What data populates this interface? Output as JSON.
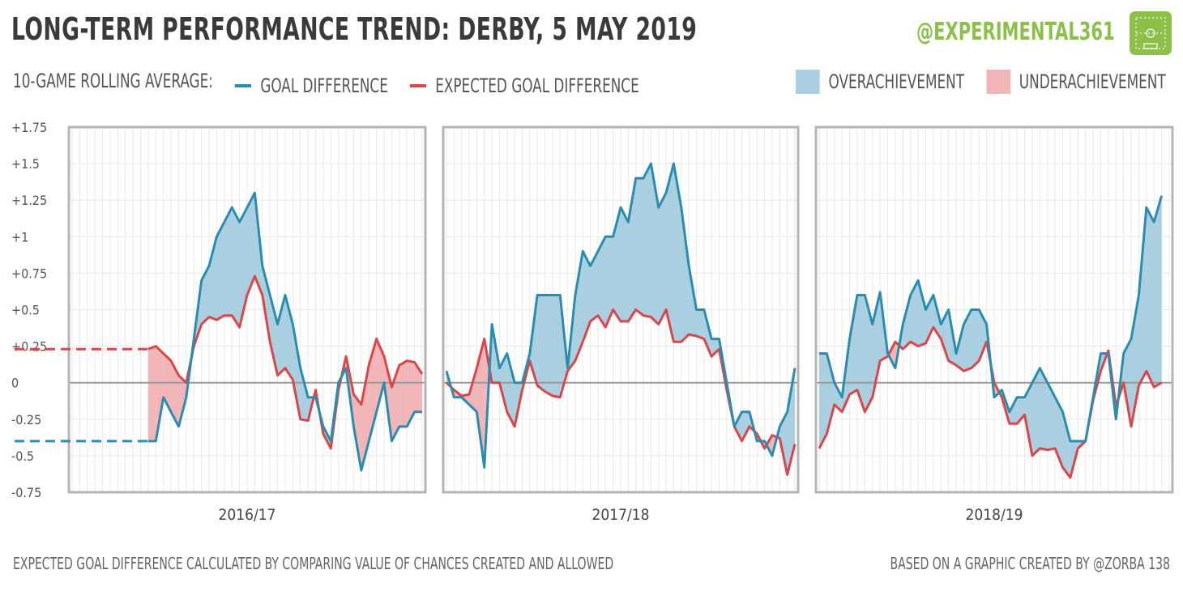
{
  "header": {
    "title": "LONG-TERM PERFORMANCE TREND: DERBY, 5 MAY 2019",
    "handle": "@EXPERIMENTAL361"
  },
  "legend": {
    "prefix": "10-GAME ROLLING  AVERAGE:",
    "gd_label": "GOAL DIFFERENCE",
    "xgd_label": "EXPECTED GOAL DIFFERENCE",
    "over_label": "OVERACHIEVEMENT",
    "under_label": "UNDERACHIEVEMENT"
  },
  "footer": {
    "left": "EXPECTED GOAL DIFFERENCE CALCULATED BY COMPARING VALUE OF CHANCES CREATED AND ALLOWED",
    "right": "BASED ON A GRAPHIC CREATED BY @ZORBA 138"
  },
  "colors": {
    "gd": "#2a8db0",
    "xgd": "#d9474b",
    "over": "#a9cfe0",
    "under": "#f2b6b8",
    "frame": "#b5b5b5",
    "grid": "#e9e9e9",
    "zero": "#9a9a9a",
    "brand": "#8cc04b"
  },
  "chart_data": {
    "type": "line",
    "ylim": [
      -0.75,
      1.75
    ],
    "yticks": [
      {
        "v": 1.75,
        "label": "+1.75"
      },
      {
        "v": 1.5,
        "label": "+1.5"
      },
      {
        "v": 1.25,
        "label": "+1.25"
      },
      {
        "v": 1,
        "label": "+1"
      },
      {
        "v": 0.75,
        "label": "+0.75"
      },
      {
        "v": 0.5,
        "label": "+0.5"
      },
      {
        "v": 0.25,
        "label": "+0.25"
      },
      {
        "v": 0,
        "label": "0"
      },
      {
        "v": -0.25,
        "label": "-0.25"
      },
      {
        "v": -0.5,
        "label": "-0.5"
      },
      {
        "v": -0.75,
        "label": "-0.75"
      }
    ],
    "games_per_season": 46,
    "grid": true,
    "panels": [
      {
        "label": "2016/17",
        "start_game": 10,
        "lead_in": {
          "gd": -0.4,
          "xgd": 0.23
        },
        "gd": [
          -0.4,
          -0.4,
          -0.1,
          -0.2,
          -0.3,
          -0.1,
          0.3,
          0.7,
          0.8,
          1.0,
          1.1,
          1.2,
          1.1,
          1.2,
          1.3,
          0.8,
          0.6,
          0.4,
          0.6,
          0.4,
          0.1,
          -0.1,
          -0.1,
          -0.3,
          -0.4,
          0.0,
          0.1,
          -0.3,
          -0.6,
          -0.4,
          -0.2,
          0.0,
          -0.4,
          -0.3,
          -0.3,
          -0.2,
          -0.2
        ],
        "xgd": [
          0.23,
          0.25,
          0.2,
          0.15,
          0.05,
          0.0,
          0.25,
          0.4,
          0.45,
          0.43,
          0.46,
          0.46,
          0.38,
          0.6,
          0.73,
          0.6,
          0.28,
          0.05,
          0.1,
          0.02,
          -0.25,
          -0.26,
          -0.05,
          -0.35,
          -0.45,
          -0.05,
          0.18,
          -0.08,
          -0.15,
          0.12,
          0.3,
          0.18,
          -0.03,
          0.12,
          0.15,
          0.14,
          0.06
        ]
      },
      {
        "label": "2017/18",
        "start_game": 0,
        "gd": [
          0.08,
          -0.1,
          -0.1,
          -0.15,
          -0.2,
          -0.58,
          0.4,
          0.1,
          0.2,
          0.0,
          0.0,
          0.2,
          0.6,
          0.6,
          0.6,
          0.6,
          0.1,
          0.6,
          0.9,
          0.8,
          0.9,
          1.0,
          1.0,
          1.2,
          1.1,
          1.4,
          1.4,
          1.5,
          1.2,
          1.3,
          1.5,
          1.2,
          0.8,
          0.5,
          0.5,
          0.3,
          0.3,
          0.0,
          -0.3,
          -0.2,
          -0.2,
          -0.4,
          -0.4,
          -0.5,
          -0.3,
          -0.2,
          0.1
        ],
        "xgd": [
          0.0,
          -0.05,
          -0.09,
          -0.08,
          0.1,
          0.3,
          0.0,
          0.0,
          -0.2,
          -0.3,
          -0.05,
          0.15,
          -0.02,
          -0.06,
          -0.09,
          -0.1,
          0.08,
          0.15,
          0.28,
          0.42,
          0.46,
          0.38,
          0.5,
          0.42,
          0.42,
          0.5,
          0.46,
          0.45,
          0.4,
          0.5,
          0.28,
          0.28,
          0.33,
          0.32,
          0.3,
          0.18,
          0.23,
          -0.05,
          -0.3,
          -0.4,
          -0.3,
          -0.35,
          -0.45,
          -0.36,
          -0.38,
          -0.63,
          -0.42
        ]
      },
      {
        "label": "2018/19",
        "start_game": 0,
        "gd": [
          0.2,
          0.2,
          0.0,
          -0.1,
          0.3,
          0.6,
          0.6,
          0.4,
          0.62,
          0.2,
          0.1,
          0.4,
          0.6,
          0.7,
          0.5,
          0.6,
          0.4,
          0.5,
          0.2,
          0.4,
          0.5,
          0.5,
          0.4,
          -0.1,
          -0.05,
          -0.2,
          -0.1,
          -0.1,
          0.0,
          0.1,
          0.0,
          -0.1,
          -0.2,
          -0.4,
          -0.4,
          -0.4,
          -0.1,
          0.2,
          0.2,
          -0.25,
          0.2,
          0.3,
          0.6,
          1.2,
          1.1,
          1.28
        ],
        "xgd": [
          -0.45,
          -0.35,
          -0.15,
          -0.2,
          -0.08,
          -0.05,
          -0.2,
          -0.1,
          0.15,
          0.18,
          0.28,
          0.23,
          0.28,
          0.25,
          0.27,
          0.38,
          0.3,
          0.15,
          0.12,
          0.08,
          0.1,
          0.15,
          0.28,
          0.0,
          -0.1,
          -0.28,
          -0.28,
          -0.22,
          -0.5,
          -0.45,
          -0.46,
          -0.45,
          -0.58,
          -0.65,
          -0.45,
          -0.4,
          -0.12,
          0.08,
          0.22,
          -0.16,
          0.0,
          -0.3,
          -0.02,
          0.08,
          -0.03,
          0.0
        ]
      }
    ]
  }
}
